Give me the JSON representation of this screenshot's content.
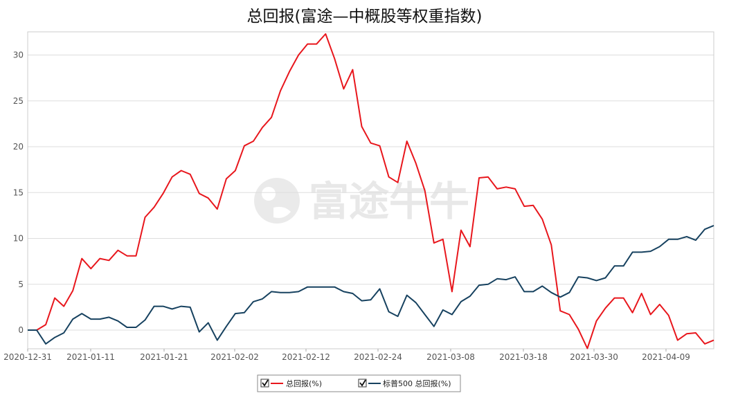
{
  "chart_data": {
    "type": "line",
    "title": "总回报(富途—中概股等权重指数)",
    "watermark": "富途牛牛",
    "xlabel": "",
    "ylabel": "",
    "x_tick_labels": [
      "2020-12-31",
      "2021-01-11",
      "2021-01-21",
      "2021-02-02",
      "2021-02-12",
      "2021-02-24",
      "2021-03-08",
      "2021-03-18",
      "2021-03-30",
      "2021-04-09"
    ],
    "ylim": [
      -2,
      33
    ],
    "y_ticks": [
      0,
      5,
      10,
      15,
      20,
      25,
      30
    ],
    "grid": true,
    "legend_position": "bottom-center",
    "series": [
      {
        "name": "总回报(%)",
        "color": "#e8161c",
        "checked": true,
        "values": [
          0,
          0,
          0.6,
          3.5,
          2.6,
          4.3,
          7.8,
          6.7,
          7.8,
          7.6,
          8.7,
          8.1,
          8.1,
          12.3,
          13.4,
          14.9,
          16.7,
          17.4,
          17,
          14.9,
          14.4,
          13.2,
          16.5,
          17.4,
          20.1,
          20.6,
          22.1,
          23.2,
          26.1,
          28.2,
          30,
          31.2,
          31.2,
          32.3,
          29.6,
          26.3,
          28.4,
          22.2,
          20.4,
          20.1,
          16.7,
          16.1,
          20.6,
          18.2,
          15.2,
          9.5,
          9.9,
          4.2,
          10.9,
          9.1,
          16.6,
          16.7,
          15.4,
          15.6,
          15.4,
          13.5,
          13.6,
          12.1,
          9.3,
          2.1,
          1.7,
          0.1,
          -2,
          1,
          2.4,
          3.5,
          3.5,
          1.9,
          4,
          1.7,
          2.8,
          1.6,
          -1.1,
          -0.4,
          -0.3,
          -1.5,
          -1.1
        ]
      },
      {
        "name": "标普500 总回报(%)",
        "color": "#16415f",
        "checked": true,
        "values": [
          0,
          0,
          -1.5,
          -0.8,
          -0.3,
          1.2,
          1.8,
          1.2,
          1.2,
          1.4,
          1,
          0.3,
          0.3,
          1.1,
          2.6,
          2.6,
          2.3,
          2.6,
          2.5,
          -0.2,
          0.8,
          -1.1,
          0.4,
          1.8,
          1.9,
          3.1,
          3.4,
          4.2,
          4.1,
          4.1,
          4.2,
          4.7,
          4.7,
          4.7,
          4.7,
          4.2,
          4,
          3.2,
          3.3,
          4.5,
          2,
          1.5,
          3.8,
          3,
          1.7,
          0.4,
          2.2,
          1.7,
          3.1,
          3.7,
          4.9,
          5,
          5.6,
          5.5,
          5.8,
          4.2,
          4.2,
          4.8,
          4.1,
          3.6,
          4.1,
          5.8,
          5.7,
          5.4,
          5.7,
          7,
          7,
          8.5,
          8.5,
          8.6,
          9.1,
          9.9,
          9.9,
          10.2,
          9.8,
          11,
          11.4
        ]
      }
    ]
  }
}
